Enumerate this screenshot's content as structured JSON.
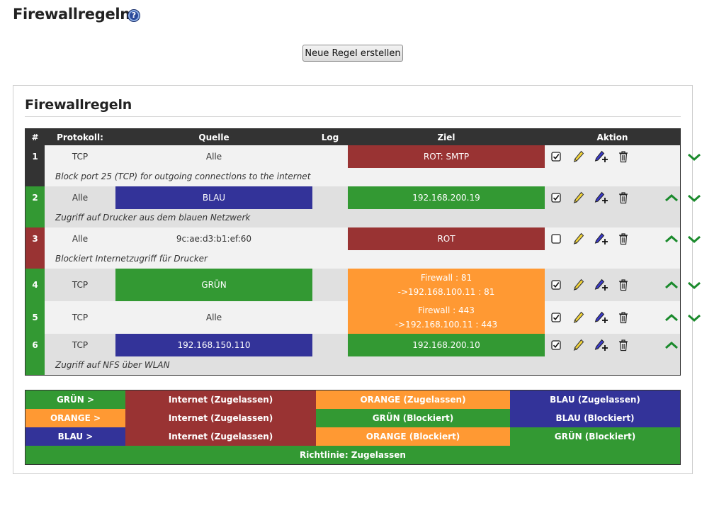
{
  "page": {
    "title": "Firewallregeln",
    "help_icon": "question-icon"
  },
  "toolbar": {
    "new_rule_label": "Neue Regel erstellen"
  },
  "panel": {
    "title": "Firewallregeln"
  },
  "table": {
    "headers": {
      "num": "#",
      "protocol": "Protokoll:",
      "source": "Quelle",
      "log": "Log",
      "target": "Ziel",
      "action": "Aktion"
    },
    "rows": [
      {
        "num": "1",
        "protocol": "TCP",
        "source": "Alle",
        "log": false,
        "target": "ROT: SMTP",
        "target2": "",
        "enabled": true,
        "remark": "Block port 25 (TCP) for outgoing connections to the internet"
      },
      {
        "num": "2",
        "protocol": "Alle",
        "source": "BLAU",
        "log": true,
        "target": "192.168.200.19",
        "target2": "",
        "enabled": true,
        "remark": "Zugriff auf Drucker aus dem blauen Netzwerk"
      },
      {
        "num": "3",
        "protocol": "Alle",
        "source": "9c:ae:d3:b1:ef:60",
        "log": true,
        "target": "ROT",
        "target2": "",
        "enabled": false,
        "remark": "Blockiert Internetzugriff für Drucker"
      },
      {
        "num": "4",
        "protocol": "TCP",
        "source": "GRÜN",
        "log": true,
        "target": "Firewall : 81",
        "target2": "->192.168.100.11 : 81",
        "enabled": true,
        "remark": ""
      },
      {
        "num": "5",
        "protocol": "TCP",
        "source": "Alle",
        "log": true,
        "target": "Firewall : 443",
        "target2": "->192.168.100.11 : 443",
        "enabled": true,
        "remark": ""
      },
      {
        "num": "6",
        "protocol": "TCP",
        "source": "192.168.150.110",
        "log": true,
        "target": "192.168.200.10",
        "target2": "",
        "enabled": true,
        "remark": "Zugriff auf NFS über WLAN"
      }
    ],
    "row_colors": [
      "#333333",
      "#339933",
      "#993333",
      "#339933",
      "#339933",
      "#339933"
    ]
  },
  "legend": {
    "green_label": "GRÜN >",
    "orange_label": "ORANGE >",
    "blue_label": "BLAU >",
    "r1c2": "Internet (Zugelassen)",
    "r1c3": "ORANGE (Zugelassen)",
    "r1c4": "BLAU (Zugelassen)",
    "r2c2": "Internet (Zugelassen)",
    "r2c3": "GRÜN (Blockiert)",
    "r2c4": "BLAU (Blockiert)",
    "r3c2": "Internet (Zugelassen)",
    "r3c3": "ORANGE (Blockiert)",
    "r3c4": "GRÜN (Blockiert)",
    "policy": "Richtlinie: Zugelassen"
  },
  "colors": {
    "red": "#993333",
    "green": "#339933",
    "blue": "#333399",
    "orange": "#ff9933",
    "header": "#333333"
  },
  "icons": [
    "checkbox-icon",
    "pencil-icon",
    "copy-pencil-icon",
    "trash-icon",
    "arrow-up-icon",
    "arrow-down-icon"
  ]
}
